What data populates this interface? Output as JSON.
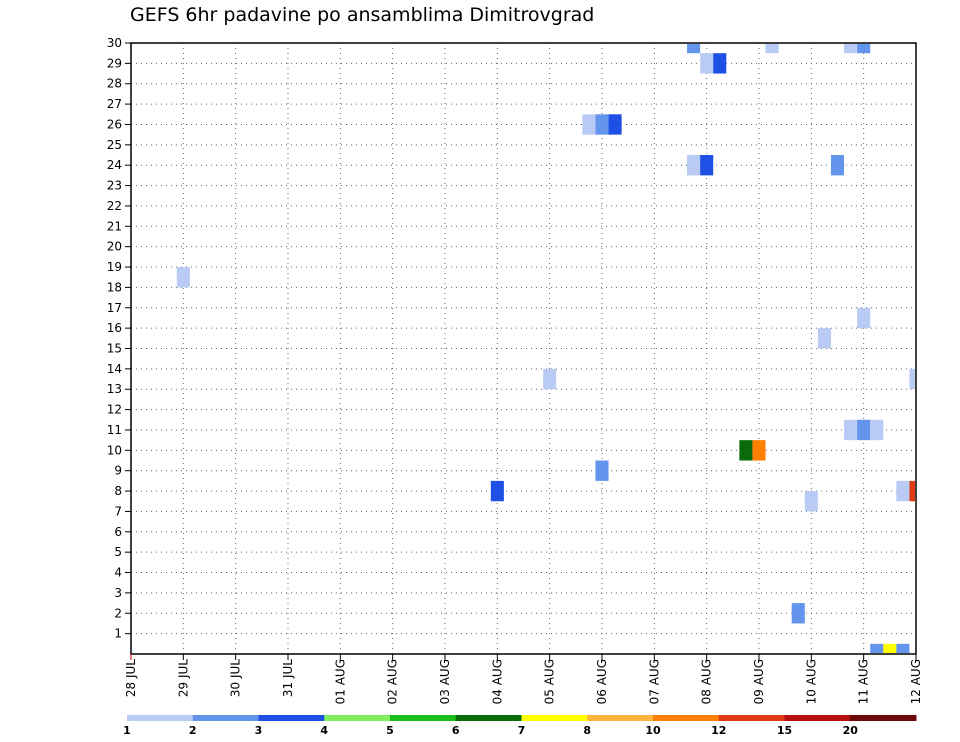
{
  "chart_data": {
    "type": "heatmap",
    "title": "GEFS 6hr padavine po ansamblima Dimitrovgrad",
    "xlabel": "",
    "ylabel": "",
    "x_ticks": [
      "28 JUL",
      "29 JUL",
      "30 JUL",
      "31 JUL",
      "01 AUG",
      "02 AUG",
      "03 AUG",
      "04 AUG",
      "05 AUG",
      "06 AUG",
      "07 AUG",
      "08 AUG",
      "09 AUG",
      "10 AUG",
      "11 AUG",
      "12 AUG"
    ],
    "y_ticks": [
      1,
      2,
      3,
      4,
      5,
      6,
      7,
      8,
      9,
      10,
      11,
      12,
      13,
      14,
      15,
      16,
      17,
      18,
      19,
      20,
      21,
      22,
      23,
      24,
      25,
      26,
      27,
      28,
      29,
      30
    ],
    "ylim": [
      0,
      30
    ],
    "grid": true,
    "colorbar": {
      "labels": [
        "1",
        "2",
        "3",
        "4",
        "5",
        "6",
        "7",
        "8",
        "10",
        "12",
        "15",
        "20"
      ],
      "colors": [
        "#b9cbf5",
        "#6495ed",
        "#1f50e6",
        "#7ff05a",
        "#17bf17",
        "#0b6b0b",
        "#ffff00",
        "#ffb43c",
        "#ff7f00",
        "#e03b12",
        "#b51010",
        "#6b0909"
      ]
    },
    "cells": [
      {
        "date": "29 JUL",
        "step": 0,
        "member": 18.5,
        "cat": 0
      },
      {
        "date": "04 AUG",
        "step": 0,
        "member": 8,
        "cat": 2
      },
      {
        "date": "05 AUG",
        "step": 0,
        "member": 13.5,
        "cat": 0
      },
      {
        "date": "06 AUG",
        "step": -1,
        "member": 26,
        "cat": 0
      },
      {
        "date": "06 AUG",
        "step": 0,
        "member": 26,
        "cat": 1
      },
      {
        "date": "06 AUG",
        "step": 1,
        "member": 26,
        "cat": 2
      },
      {
        "date": "06 AUG",
        "step": 0,
        "member": 9,
        "cat": 1
      },
      {
        "date": "08 AUG",
        "step": -1,
        "member": 30,
        "cat": 1
      },
      {
        "date": "08 AUG",
        "step": -1,
        "member": 24,
        "cat": 0
      },
      {
        "date": "08 AUG",
        "step": 0,
        "member": 24,
        "cat": 2
      },
      {
        "date": "08 AUG",
        "step": 0,
        "member": 29,
        "cat": 0
      },
      {
        "date": "08 AUG",
        "step": 1,
        "member": 29,
        "cat": 2
      },
      {
        "date": "09 AUG",
        "step": -1,
        "member": 10,
        "cat": 5
      },
      {
        "date": "09 AUG",
        "step": 0,
        "member": 10,
        "cat": 8
      },
      {
        "date": "09 AUG",
        "step": 1,
        "member": 30,
        "cat": 0
      },
      {
        "date": "10 AUG",
        "step": -1,
        "member": 2,
        "cat": 1
      },
      {
        "date": "10 AUG",
        "step": 0,
        "member": 7.5,
        "cat": 0
      },
      {
        "date": "10 AUG",
        "step": 1,
        "member": 15.5,
        "cat": 0
      },
      {
        "date": "11 AUG",
        "step": -2,
        "member": 24,
        "cat": 1
      },
      {
        "date": "11 AUG",
        "step": -1,
        "member": 30,
        "cat": 0
      },
      {
        "date": "11 AUG",
        "step": 0,
        "member": 30,
        "cat": 1
      },
      {
        "date": "11 AUG",
        "step": -1,
        "member": 11,
        "cat": 0
      },
      {
        "date": "11 AUG",
        "step": 0,
        "member": 11,
        "cat": 1
      },
      {
        "date": "11 AUG",
        "step": 1,
        "member": 11,
        "cat": 0
      },
      {
        "date": "11 AUG",
        "step": 0,
        "member": 16.5,
        "cat": 0
      },
      {
        "date": "11 AUG",
        "step": 1,
        "member": 0,
        "cat": 1
      },
      {
        "date": "11 AUG",
        "step": 2,
        "member": 0,
        "cat": 6
      },
      {
        "date": "11 AUG",
        "step": 3,
        "member": 0,
        "cat": 1
      },
      {
        "date": "11 AUG",
        "step": 3,
        "member": 8,
        "cat": 0
      },
      {
        "date": "12 AUG",
        "step": 0,
        "member": 8,
        "cat": 9
      },
      {
        "date": "12 AUG",
        "step": 0,
        "member": 13.5,
        "cat": 0
      }
    ]
  }
}
